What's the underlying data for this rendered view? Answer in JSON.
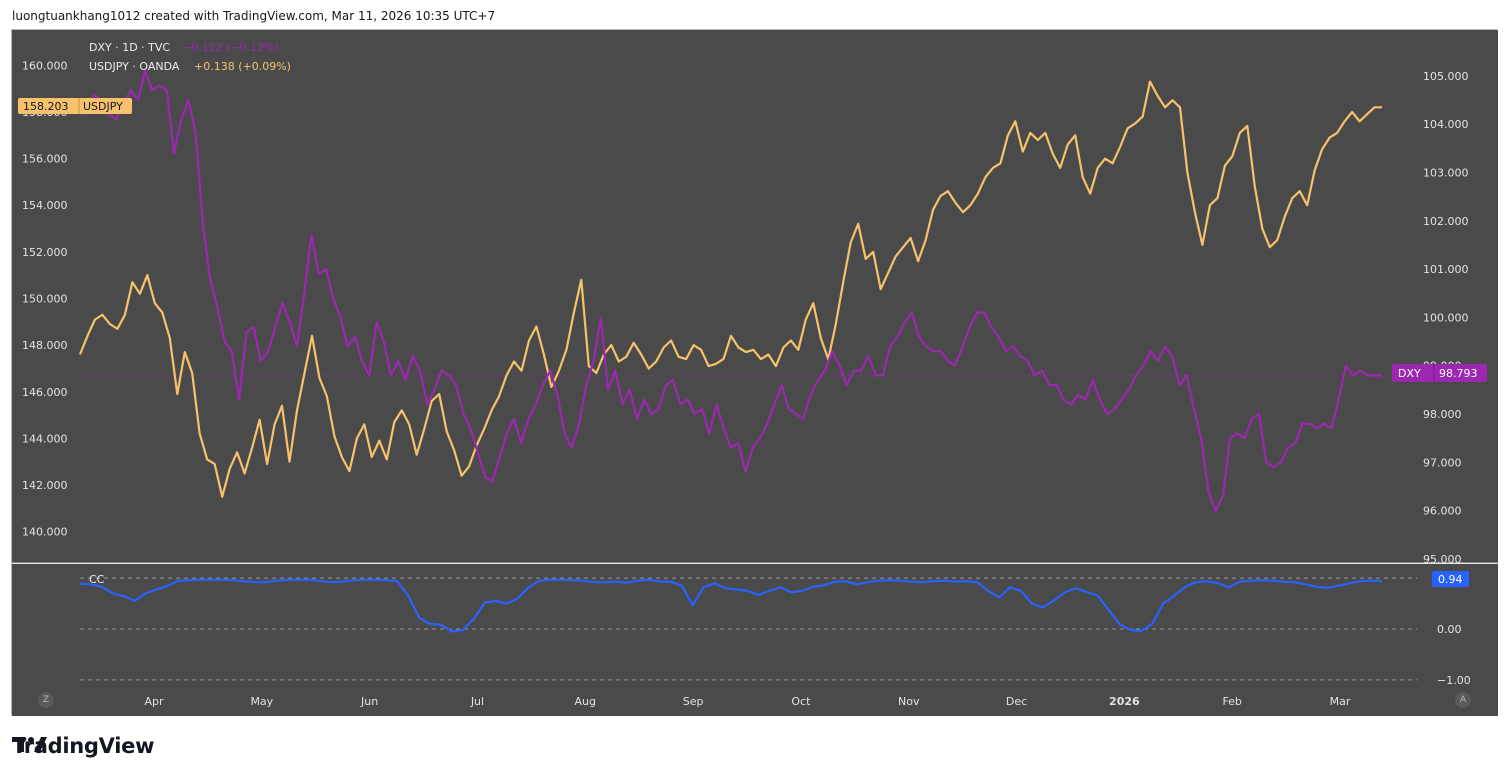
{
  "header": {
    "attribution": "luongtuankhang1012 created with TradingView.com, Mar 11, 2026 10:35 UTC+7"
  },
  "legend": {
    "dxy_label": "DXY · 1D · TVC",
    "dxy_change": "−0.122 (−0.12%)",
    "usdjpy_label": "USDJPY · OANDA",
    "usdjpy_change": "+0.138 (+0.09%)",
    "cc_label": "CC"
  },
  "badges": {
    "usdjpy_value": "158.203",
    "usdjpy_name": "USDJPY",
    "dxy_name": "DXY",
    "dxy_value": "98.793",
    "cc_value": "0.94"
  },
  "colors": {
    "background": "#4a4a4a",
    "usdjpy": "#f7c26b",
    "dxy": "#9c27b0",
    "cc": "#2962ff",
    "grid_text": "#e0e0e0"
  },
  "footer": {
    "brand": "TradingView",
    "left_button": "Z",
    "right_button": "A"
  },
  "chart_data": [
    {
      "type": "line",
      "title": "",
      "x_labels": [
        "Apr",
        "May",
        "Jun",
        "Jul",
        "Aug",
        "Sep",
        "Oct",
        "Nov",
        "Dec",
        "2026",
        "Feb",
        "Mar"
      ],
      "left_axis_ticks": [
        "160.000",
        "158.000",
        "156.000",
        "154.000",
        "152.000",
        "150.000",
        "148.000",
        "146.000",
        "144.000",
        "142.000",
        "140.000"
      ],
      "right_axis_ticks": [
        "105.000",
        "104.000",
        "103.000",
        "102.000",
        "101.000",
        "100.000",
        "99.000",
        "98.000",
        "97.000",
        "96.000",
        "95.000"
      ],
      "left_ylim": [
        139,
        161
      ],
      "right_ylim": [
        95,
        105.1
      ],
      "series": [
        {
          "name": "USDJPY",
          "axis": "left",
          "values": [
            147.6,
            148.4,
            149.1,
            149.3,
            148.9,
            148.7,
            149.3,
            150.7,
            150.2,
            151.0,
            149.8,
            149.4,
            148.3,
            145.9,
            147.7,
            146.8,
            144.2,
            143.1,
            142.9,
            141.5,
            142.7,
            143.4,
            142.5,
            143.6,
            144.8,
            142.9,
            144.6,
            145.4,
            143.0,
            145.2,
            146.8,
            148.4,
            146.6,
            145.8,
            144.1,
            143.2,
            142.6,
            144.0,
            144.6,
            143.2,
            143.9,
            143.1,
            144.7,
            145.2,
            144.6,
            143.3,
            144.4,
            145.6,
            145.9,
            144.3,
            143.5,
            142.4,
            142.8,
            143.7,
            144.4,
            145.2,
            145.8,
            146.7,
            147.3,
            146.9,
            148.2,
            148.8,
            147.6,
            146.2,
            146.9,
            147.8,
            149.4,
            150.8,
            147.1,
            146.8,
            147.6,
            148.0,
            147.3,
            147.5,
            148.1,
            147.6,
            147.0,
            147.3,
            147.9,
            148.2,
            147.5,
            147.4,
            148.0,
            147.8,
            147.1,
            147.2,
            147.4,
            148.4,
            147.9,
            147.7,
            147.8,
            147.4,
            147.6,
            147.1,
            147.9,
            148.2,
            147.8,
            149.1,
            149.8,
            148.3,
            147.4,
            148.9,
            150.7,
            152.4,
            153.2,
            151.7,
            152.0,
            150.4,
            151.1,
            151.8,
            152.2,
            152.6,
            151.6,
            152.5,
            153.8,
            154.4,
            154.6,
            154.1,
            153.7,
            154.0,
            154.5,
            155.2,
            155.6,
            155.8,
            157.0,
            157.6,
            156.3,
            157.1,
            156.8,
            157.1,
            156.2,
            155.6,
            156.6,
            157.0,
            155.2,
            154.5,
            155.6,
            156.0,
            155.8,
            156.5,
            157.3,
            157.5,
            157.8,
            159.3,
            158.7,
            158.2,
            158.5,
            158.2,
            155.4,
            153.7,
            152.3,
            154.0,
            154.3,
            155.7,
            156.1,
            157.1,
            157.4,
            154.8,
            153.0,
            152.2,
            152.5,
            153.5,
            154.3,
            154.6,
            154.0,
            155.5,
            156.4,
            156.9,
            157.1,
            157.6,
            158.0,
            157.6,
            157.9,
            158.2,
            158.2
          ]
        },
        {
          "name": "DXY",
          "axis": "right",
          "values": [
            104.2,
            104.3,
            104.6,
            104.5,
            104.2,
            104.1,
            104.4,
            104.7,
            104.5,
            105.1,
            104.7,
            104.8,
            104.7,
            103.4,
            104.1,
            104.5,
            103.8,
            101.9,
            100.8,
            100.2,
            99.5,
            99.3,
            98.3,
            99.7,
            99.8,
            99.1,
            99.3,
            99.8,
            100.3,
            99.9,
            99.4,
            100.5,
            101.7,
            100.9,
            101.0,
            100.4,
            100.0,
            99.4,
            99.6,
            99.1,
            98.8,
            99.9,
            99.5,
            98.8,
            99.1,
            98.7,
            99.2,
            98.9,
            98.2,
            98.5,
            98.9,
            98.8,
            98.6,
            98.0,
            97.7,
            97.2,
            96.7,
            96.6,
            97.1,
            97.6,
            97.9,
            97.4,
            97.9,
            98.2,
            98.6,
            98.9,
            98.4,
            97.6,
            97.3,
            97.8,
            98.6,
            99.1,
            100.0,
            98.5,
            98.9,
            98.2,
            98.5,
            97.9,
            98.3,
            98.0,
            98.1,
            98.6,
            98.7,
            98.2,
            98.3,
            98.0,
            98.1,
            97.6,
            98.2,
            97.7,
            97.3,
            97.4,
            96.8,
            97.3,
            97.5,
            97.8,
            98.2,
            98.6,
            98.1,
            98.0,
            97.9,
            98.4,
            98.7,
            98.9,
            99.3,
            99.0,
            98.6,
            98.9,
            98.9,
            99.2,
            98.8,
            98.8,
            99.4,
            99.6,
            99.9,
            100.1,
            99.6,
            99.4,
            99.3,
            99.3,
            99.1,
            99.0,
            99.4,
            99.8,
            100.1,
            100.1,
            99.8,
            99.6,
            99.3,
            99.4,
            99.2,
            99.1,
            98.8,
            98.9,
            98.6,
            98.6,
            98.3,
            98.2,
            98.4,
            98.3,
            98.7,
            98.3,
            98.0,
            98.1,
            98.3,
            98.5,
            98.8,
            99.0,
            99.3,
            99.1,
            99.4,
            99.2,
            98.6,
            98.8,
            98.1,
            97.5,
            96.4,
            96.0,
            96.3,
            97.5,
            97.6,
            97.5,
            97.9,
            98.0,
            97.0,
            96.9,
            97.0,
            97.3,
            97.4,
            97.8,
            97.8,
            97.7,
            97.8,
            97.7,
            98.3,
            99.0,
            98.8,
            98.9,
            98.8,
            98.8,
            98.8
          ]
        }
      ]
    },
    {
      "type": "line",
      "title": "CC",
      "right_axis_ticks": [
        "1.00",
        "0.00",
        "−1.00"
      ],
      "ylim": [
        -1.2,
        1.2
      ],
      "series": [
        {
          "name": "CC",
          "values": [
            0.89,
            0.88,
            0.83,
            0.7,
            0.65,
            0.55,
            0.7,
            0.78,
            0.85,
            0.95,
            0.96,
            0.97,
            0.97,
            0.97,
            0.96,
            0.94,
            0.92,
            0.92,
            0.95,
            0.97,
            0.97,
            0.97,
            0.94,
            0.92,
            0.93,
            0.96,
            0.97,
            0.97,
            0.96,
            0.94,
            0.66,
            0.22,
            0.1,
            0.08,
            -0.05,
            -0.02,
            0.2,
            0.52,
            0.55,
            0.5,
            0.6,
            0.82,
            0.95,
            0.97,
            0.97,
            0.96,
            0.95,
            0.92,
            0.92,
            0.93,
            0.91,
            0.95,
            0.97,
            0.93,
            0.93,
            0.85,
            0.47,
            0.82,
            0.9,
            0.8,
            0.78,
            0.75,
            0.67,
            0.75,
            0.82,
            0.72,
            0.75,
            0.83,
            0.86,
            0.93,
            0.94,
            0.88,
            0.92,
            0.95,
            0.96,
            0.95,
            0.93,
            0.92,
            0.94,
            0.95,
            0.93,
            0.94,
            0.92,
            0.75,
            0.62,
            0.82,
            0.75,
            0.5,
            0.42,
            0.56,
            0.72,
            0.8,
            0.73,
            0.66,
            0.38,
            0.1,
            -0.02,
            -0.04,
            0.1,
            0.5,
            0.65,
            0.83,
            0.92,
            0.94,
            0.9,
            0.82,
            0.93,
            0.95,
            0.96,
            0.95,
            0.93,
            0.92,
            0.88,
            0.83,
            0.81,
            0.85,
            0.9,
            0.94,
            0.95,
            0.94
          ]
        }
      ]
    }
  ]
}
